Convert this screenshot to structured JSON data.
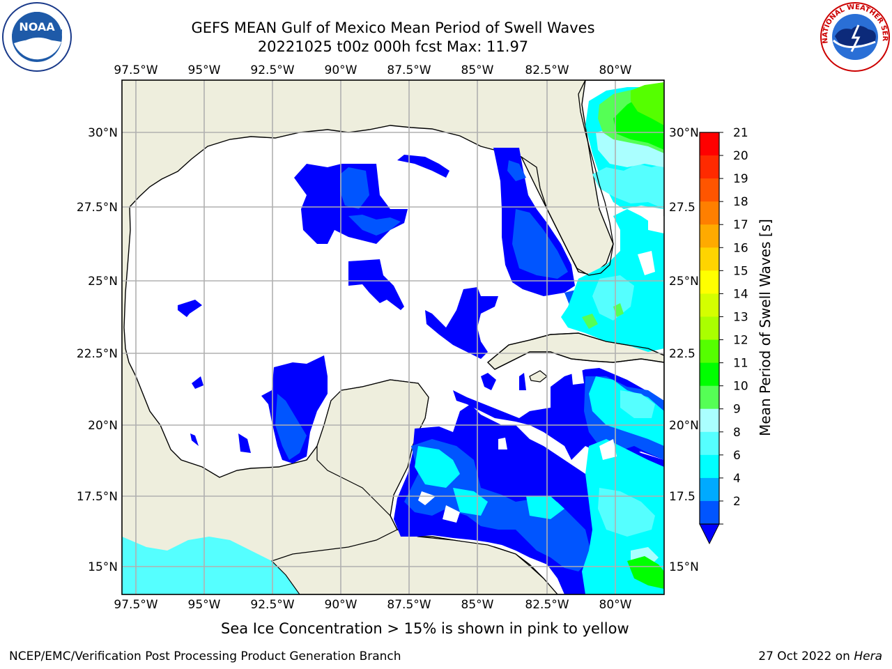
{
  "title": {
    "line1": "GEFS MEAN Gulf of Mexico Mean Period of Swell Waves",
    "line2": "20221025 t00z 000h fcst   Max: 11.97"
  },
  "map": {
    "lon_labels": [
      "97.5°W",
      "95°W",
      "92.5°W",
      "90°W",
      "87.5°W",
      "85°W",
      "82.5°W",
      "80°W"
    ],
    "lat_labels_left": [
      "30°N",
      "27.5°N",
      "25°N",
      "22.5°N",
      "20°N",
      "17.5°N",
      "15°N"
    ],
    "lat_labels_right": [
      "30°N",
      "27.5",
      "25°N",
      "22.5",
      "20°N",
      "17.5",
      "15°N"
    ],
    "land_color": "#eeeedd",
    "water_color": "#ffffff"
  },
  "colorbar": {
    "label": "Mean Period of Swell Waves [s]",
    "ticks": [
      "21",
      "20",
      "19",
      "18",
      "17",
      "16",
      "15",
      "14",
      "13",
      "12",
      "11",
      "10",
      "9",
      "8",
      "6",
      "4",
      "2"
    ],
    "colors": [
      "#ff0000",
      "#ff2a00",
      "#ff5500",
      "#ff7f00",
      "#ffaa00",
      "#ffd400",
      "#ffff00",
      "#d4ff00",
      "#aaff00",
      "#55ff00",
      "#00ff00",
      "#55ff55",
      "#aaffff",
      "#55ffff",
      "#00ffff",
      "#00aaff",
      "#0055ff"
    ],
    "extend_color": "#0000ff"
  },
  "subtitle": "Sea Ice Concentration > 15% is shown in pink to yellow",
  "footer": {
    "left": "NCEP/EMC/Verification Post Processing Product Generation Branch",
    "right_text": "27 Oct 2022 on",
    "right_host": "Hera"
  },
  "logos": {
    "noaa_text": "NOAA",
    "nws_text": "NATIONAL WEATHER SERVICE"
  }
}
